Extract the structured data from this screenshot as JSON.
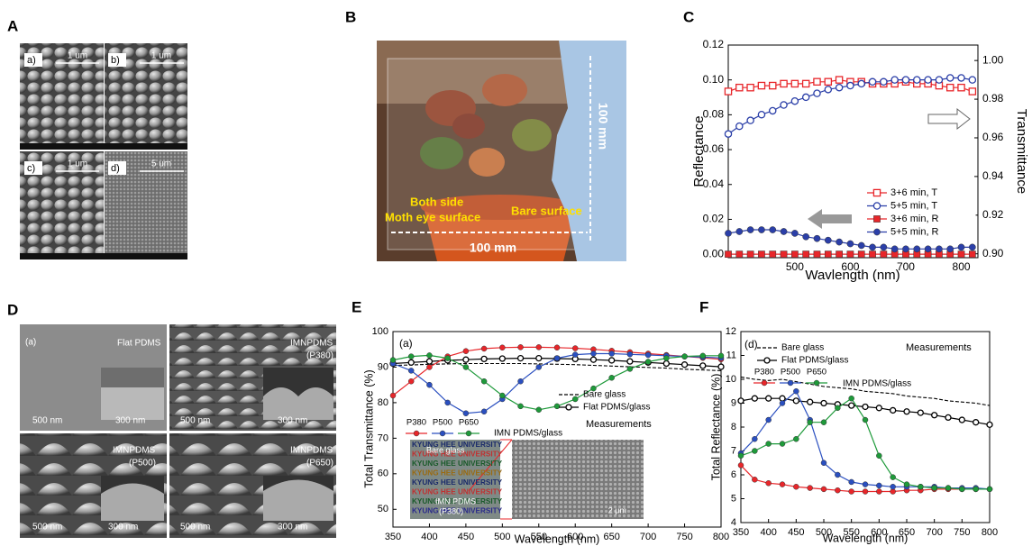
{
  "figure": {
    "panel_labels": [
      "A",
      "B",
      "C",
      "D",
      "E",
      "F"
    ],
    "panel_A": {
      "subpanel_labels": [
        "a)",
        "b)",
        "c)",
        "d)"
      ],
      "scale_bars": [
        "1 um",
        "1 um",
        "1 um",
        "5 um"
      ]
    },
    "panel_B": {
      "vertical_size": "100 mm",
      "both_side": "Both side",
      "moth_eye": "Moth eye surface",
      "bare": "Bare surface",
      "horizontal_size": "100 mm"
    },
    "panel_D": [
      {
        "labels": [
          "(a)",
          "Flat PDMS"
        ],
        "scales": [
          "500 nm",
          "300 nm"
        ]
      },
      {
        "labels": [
          "IMNPDMS",
          "(P380)"
        ],
        "scales": [
          "500 nm",
          "300 nm"
        ]
      },
      {
        "labels": [
          "IMNPDMS",
          "(P500)"
        ],
        "scales": [
          "500 nm",
          "300 nm"
        ]
      },
      {
        "labels": [
          "IMNPDMS",
          "(P650)"
        ],
        "scales": [
          "500 nm",
          "300 nm"
        ]
      }
    ],
    "panel_E_inset": {
      "rows": [
        "KYUNG HEE UNIVERSITY",
        "KYUNG HEE UNIVERSITY",
        "KYUNG HEE UNIVERSITY",
        "KYUNG HEE UNIVERSITY",
        "KYUNG HEE UNIVERSITY",
        "KYUNG HEE UNIVERSITY",
        "KYUNG HEE UNIVERSITY",
        "KYUNG HEE UNIVERSITY"
      ],
      "labels": [
        "Bare glass",
        "IMN PDMS",
        "(P380)"
      ],
      "scale": "2 μm"
    }
  },
  "chart_data": [
    {
      "type": "line",
      "xlabel": "Wavlength (nm)",
      "ylabel": "Reflectance",
      "y2label": "Transmittance",
      "x": [
        380,
        400,
        420,
        440,
        460,
        480,
        500,
        520,
        540,
        560,
        580,
        600,
        620,
        640,
        660,
        680,
        700,
        720,
        740,
        760,
        780,
        800,
        820
      ],
      "xlim": [
        380,
        830
      ],
      "xticks": [
        500,
        600,
        700,
        800
      ],
      "ylim": [
        -0.002,
        0.12
      ],
      "yticks": [
        {
          "value": 0,
          "label": "0.00"
        },
        0.02,
        0.04,
        0.06,
        0.08,
        {
          "value": 0.1,
          "label": "0.10"
        },
        0.12
      ],
      "y2lim": [
        0.898,
        1.008
      ],
      "y2ticks": [
        {
          "value": 0.9,
          "label": "0.90"
        },
        0.92,
        0.94,
        0.96,
        0.98,
        {
          "value": 1,
          "label": "1.00"
        }
      ],
      "series": [
        {
          "name": "3+6 min, T",
          "color": "#e8262a",
          "marker": "open-square",
          "style": "solid",
          "axis": "y2",
          "values": [
            0.984,
            0.986,
            0.986,
            0.987,
            0.987,
            0.988,
            0.988,
            0.988,
            0.989,
            0.989,
            0.99,
            0.989,
            0.989,
            0.988,
            0.988,
            0.988,
            0.989,
            0.988,
            0.988,
            0.987,
            0.986,
            0.986,
            0.984
          ]
        },
        {
          "name": "5+5 min, T",
          "color": "#2b3fa8",
          "marker": "open-circle",
          "style": "solid",
          "axis": "y2",
          "values": [
            0.962,
            0.966,
            0.969,
            0.972,
            0.974,
            0.977,
            0.979,
            0.981,
            0.983,
            0.985,
            0.986,
            0.987,
            0.988,
            0.989,
            0.989,
            0.99,
            0.99,
            0.99,
            0.99,
            0.99,
            0.991,
            0.991,
            0.99
          ]
        },
        {
          "name": "3+6 min, R",
          "color": "#e8262a",
          "marker": "filled-square",
          "style": "solid",
          "axis": "y",
          "values": [
            0,
            0,
            0,
            0,
            0,
            0,
            0,
            0,
            0,
            0,
            0,
            0,
            0,
            0,
            0,
            0,
            0,
            0,
            0,
            0,
            0,
            0,
            0
          ]
        },
        {
          "name": "5+5 min, R",
          "color": "#2b3fa8",
          "marker": "filled-circle",
          "style": "solid",
          "axis": "y",
          "values": [
            0.012,
            0.013,
            0.014,
            0.014,
            0.014,
            0.013,
            0.012,
            0.01,
            0.009,
            0.008,
            0.007,
            0.006,
            0.005,
            0.004,
            0.004,
            0.003,
            0.003,
            0.003,
            0.003,
            0.003,
            0.003,
            0.004,
            0.004
          ]
        }
      ]
    },
    {
      "type": "line",
      "xlabel": "Wavelength (nm)",
      "ylabel": "Total Transmittance (%)",
      "annotations": [
        "(a)",
        "Measurements"
      ],
      "legend_group_label": "IMN PDMS/glass",
      "x": [
        350,
        375,
        400,
        425,
        450,
        475,
        500,
        525,
        550,
        575,
        600,
        625,
        650,
        675,
        700,
        725,
        750,
        775,
        800
      ],
      "xlim": [
        350,
        800
      ],
      "xticks": [
        350,
        400,
        450,
        500,
        550,
        600,
        650,
        700,
        750,
        800
      ],
      "ylim": [
        45,
        100
      ],
      "yticks": [
        50,
        60,
        70,
        80,
        90,
        100
      ],
      "series": [
        {
          "name": "Bare glass",
          "color": "#000000",
          "marker": "none",
          "style": "dashed",
          "values": [
            90.5,
            90.6,
            90.8,
            90.9,
            91,
            91,
            91,
            91,
            90.9,
            90.8,
            90.7,
            90.5,
            90.3,
            90.1,
            89.9,
            89.7,
            89.4,
            89.2,
            89.0
          ]
        },
        {
          "name": "Flat PDMS/glass",
          "color": "#000000",
          "marker": "open-circle",
          "style": "solid",
          "values": [
            91,
            91.3,
            91.6,
            91.9,
            92.1,
            92.3,
            92.4,
            92.5,
            92.5,
            92.4,
            92.3,
            92.1,
            91.9,
            91.6,
            91.3,
            91.0,
            90.7,
            90.4,
            90.1
          ]
        },
        {
          "name": "P380",
          "color": "#e8262a",
          "marker": "filled-circle",
          "style": "solid",
          "values": [
            82,
            86,
            90,
            93,
            94.5,
            95.2,
            95.5,
            95.6,
            95.6,
            95.5,
            95.3,
            95,
            94.6,
            94.2,
            93.8,
            93.4,
            93,
            92.6,
            92.2
          ]
        },
        {
          "name": "P500",
          "color": "#2a4fc0",
          "marker": "filled-circle",
          "style": "solid",
          "values": [
            91,
            89,
            85,
            80,
            77,
            77.5,
            81,
            86,
            90,
            92.5,
            93.5,
            93.8,
            93.8,
            93.6,
            93.4,
            93.2,
            93,
            92.8,
            92.6
          ]
        },
        {
          "name": "P650",
          "color": "#1e9a3a",
          "marker": "filled-circle",
          "style": "solid",
          "values": [
            92,
            93,
            93.3,
            92.5,
            90,
            86,
            82,
            79,
            78,
            79,
            81,
            84,
            87,
            89.5,
            91.5,
            92.5,
            93,
            93.2,
            93.2
          ]
        }
      ]
    },
    {
      "type": "line",
      "xlabel": "Wavelength (nm)",
      "ylabel": "Total Reflectance (%)",
      "annotations": [
        "(d)",
        "Measurements"
      ],
      "legend_group_label": "IMN PDMS/glass",
      "x": [
        350,
        375,
        400,
        425,
        450,
        475,
        500,
        525,
        550,
        575,
        600,
        625,
        650,
        675,
        700,
        725,
        750,
        775,
        800
      ],
      "xlim": [
        350,
        800
      ],
      "xticks": [
        350,
        400,
        450,
        500,
        550,
        600,
        650,
        700,
        750,
        800
      ],
      "ylim": [
        4,
        12
      ],
      "yticks": [
        4,
        5,
        6,
        7,
        8,
        9,
        10,
        11,
        12
      ],
      "series": [
        {
          "name": "Bare glass",
          "color": "#000000",
          "marker": "none",
          "style": "dashed",
          "values": [
            10.1,
            10,
            9.95,
            10,
            9.9,
            9.8,
            9.7,
            9.65,
            9.6,
            9.5,
            9.45,
            9.4,
            9.3,
            9.25,
            9.2,
            9.1,
            9.05,
            9,
            8.9
          ]
        },
        {
          "name": "Flat PDMS/glass",
          "color": "#000000",
          "marker": "open-circle",
          "style": "solid",
          "values": [
            9.1,
            9.2,
            9.2,
            9.2,
            9.1,
            9.05,
            9,
            8.95,
            8.9,
            8.85,
            8.8,
            8.7,
            8.65,
            8.6,
            8.5,
            8.4,
            8.3,
            8.2,
            8.1
          ]
        },
        {
          "name": "P380",
          "color": "#e8262a",
          "marker": "filled-circle",
          "style": "solid",
          "values": [
            6.4,
            5.8,
            5.65,
            5.6,
            5.5,
            5.45,
            5.4,
            5.35,
            5.3,
            5.3,
            5.3,
            5.3,
            5.35,
            5.35,
            5.4,
            5.4,
            5.4,
            5.4,
            5.4
          ]
        },
        {
          "name": "P500",
          "color": "#2a4fc0",
          "marker": "filled-circle",
          "style": "solid",
          "values": [
            6.9,
            7.5,
            8.3,
            9.0,
            9.5,
            8.3,
            6.5,
            6.0,
            5.7,
            5.6,
            5.55,
            5.5,
            5.5,
            5.5,
            5.5,
            5.45,
            5.45,
            5.45,
            5.4
          ]
        },
        {
          "name": "P650",
          "color": "#1e9a3a",
          "marker": "filled-circle",
          "style": "solid",
          "values": [
            6.8,
            7,
            7.3,
            7.3,
            7.5,
            8.2,
            8.2,
            8.8,
            9.2,
            8.3,
            6.8,
            5.9,
            5.6,
            5.5,
            5.45,
            5.45,
            5.4,
            5.4,
            5.4
          ]
        }
      ]
    }
  ]
}
